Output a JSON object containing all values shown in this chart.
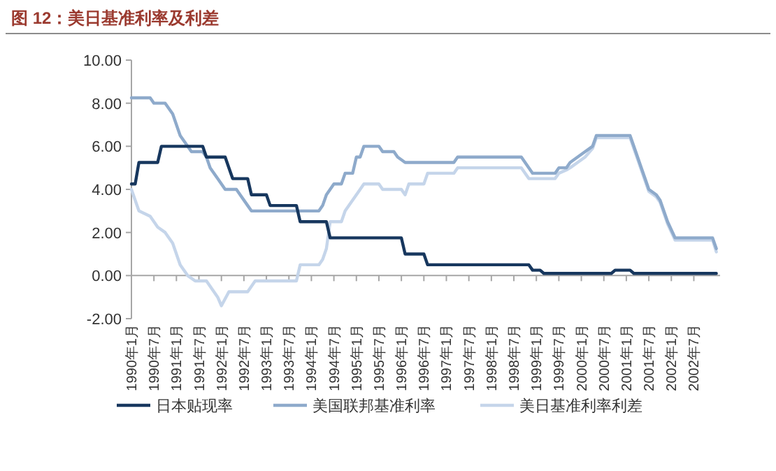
{
  "chart_data": {
    "type": "line",
    "title": "图 12：美日基准利率及利差",
    "xlim": [
      "1990-01",
      "2003-02"
    ],
    "xticks": [
      {
        "value": "1990-01",
        "label": "1990年1月"
      },
      {
        "value": "1990-07",
        "label": "1990年7月"
      },
      {
        "value": "1991-01",
        "label": "1991年1月"
      },
      {
        "value": "1991-07",
        "label": "1991年7月"
      },
      {
        "value": "1992-01",
        "label": "1992年1月"
      },
      {
        "value": "1992-07",
        "label": "1992年7月"
      },
      {
        "value": "1993-01",
        "label": "1993年1月"
      },
      {
        "value": "1993-07",
        "label": "1993年7月"
      },
      {
        "value": "1994-01",
        "label": "1994年1月"
      },
      {
        "value": "1994-07",
        "label": "1994年7月"
      },
      {
        "value": "1995-01",
        "label": "1995年1月"
      },
      {
        "value": "1995-07",
        "label": "1995年7月"
      },
      {
        "value": "1996-01",
        "label": "1996年1月"
      },
      {
        "value": "1996-07",
        "label": "1996年7月"
      },
      {
        "value": "1997-01",
        "label": "1997年1月"
      },
      {
        "value": "1997-07",
        "label": "1997年7月"
      },
      {
        "value": "1998-01",
        "label": "1998年1月"
      },
      {
        "value": "1998-07",
        "label": "1998年7月"
      },
      {
        "value": "1999-01",
        "label": "1999年1月"
      },
      {
        "value": "1999-07",
        "label": "1999年7月"
      },
      {
        "value": "2000-01",
        "label": "2000年1月"
      },
      {
        "value": "2000-07",
        "label": "2000年7月"
      },
      {
        "value": "2001-01",
        "label": "2001年1月"
      },
      {
        "value": "2001-07",
        "label": "2001年7月"
      },
      {
        "value": "2002-01",
        "label": "2002年1月"
      },
      {
        "value": "2002-07",
        "label": "2002年7月"
      }
    ],
    "ylim": [
      -2,
      10
    ],
    "yticks": [
      {
        "value": -2,
        "label": "-2.00"
      },
      {
        "value": 0,
        "label": "0.00"
      },
      {
        "value": 2,
        "label": "2.00"
      },
      {
        "value": 4,
        "label": "4.00"
      },
      {
        "value": 6,
        "label": "6.00"
      },
      {
        "value": 8,
        "label": "8.00"
      },
      {
        "value": 10,
        "label": "10.00"
      }
    ],
    "legend": "bottom",
    "line_style": "solid",
    "series": [
      {
        "name": "日本贴现率",
        "color": "#17375e",
        "x": [
          "1990-01",
          "1990-02",
          "1990-03",
          "1990-08",
          "1990-09",
          "1991-08",
          "1991-09",
          "1992-02",
          "1992-03",
          "1992-04",
          "1992-08",
          "1992-09",
          "1993-01",
          "1993-02",
          "1993-09",
          "1993-10",
          "1994-05",
          "1994-06",
          "1996-01",
          "1996-02",
          "1996-07",
          "1996-08",
          "1998-11",
          "1998-12",
          "1999-02",
          "1999-03",
          "2000-09",
          "2000-10",
          "2001-02",
          "2001-03",
          "2003-01"
        ],
        "values": [
          4.25,
          4.25,
          5.25,
          5.25,
          6.0,
          6.0,
          5.5,
          5.5,
          5.0,
          4.5,
          4.5,
          3.75,
          3.75,
          3.25,
          3.25,
          2.5,
          2.5,
          1.75,
          1.75,
          1.0,
          1.0,
          0.5,
          0.5,
          0.25,
          0.25,
          0.1,
          0.1,
          0.25,
          0.25,
          0.1,
          0.1
        ]
      },
      {
        "name": "美国联邦基准利率",
        "color": "#8eaacb",
        "x": [
          "1990-01",
          "1990-06",
          "1990-07",
          "1990-10",
          "1990-12",
          "1991-02",
          "1991-04",
          "1991-05",
          "1991-08",
          "1991-09",
          "1991-10",
          "1991-12",
          "1992-02",
          "1992-05",
          "1992-06",
          "1992-08",
          "1992-09",
          "1994-03",
          "1994-04",
          "1994-05",
          "1994-07",
          "1994-09",
          "1994-10",
          "1994-12",
          "1995-01",
          "1995-02",
          "1995-03",
          "1995-07",
          "1995-08",
          "1995-11",
          "1995-12",
          "1996-02",
          "1997-03",
          "1997-04",
          "1998-09",
          "1998-11",
          "1998-12",
          "1999-06",
          "1999-07",
          "1999-09",
          "1999-10",
          "1999-12",
          "2000-02",
          "2000-04",
          "2000-05",
          "2001-02",
          "2001-03",
          "2001-04",
          "2001-05",
          "2001-06",
          "2001-07",
          "2001-09",
          "2001-10",
          "2001-12",
          "2002-02",
          "2002-12",
          "2003-01"
        ],
        "values": [
          8.25,
          8.25,
          8.0,
          8.0,
          7.5,
          6.5,
          6.0,
          5.75,
          5.75,
          5.5,
          5.0,
          4.5,
          4.0,
          4.0,
          3.75,
          3.25,
          3.0,
          3.0,
          3.25,
          3.75,
          4.25,
          4.25,
          4.75,
          4.75,
          5.5,
          5.5,
          6.0,
          6.0,
          5.75,
          5.75,
          5.5,
          5.25,
          5.25,
          5.5,
          5.5,
          5.0,
          4.75,
          4.75,
          5.0,
          5.0,
          5.25,
          5.5,
          5.75,
          6.0,
          6.5,
          6.5,
          6.0,
          5.5,
          5.0,
          4.5,
          4.0,
          3.75,
          3.5,
          2.5,
          1.75,
          1.75,
          1.25
        ]
      },
      {
        "name": "美日基准利率利差",
        "color": "#c5d5ea",
        "x": [
          "1990-01",
          "1990-02",
          "1990-03",
          "1990-06",
          "1990-08",
          "1990-10",
          "1990-12",
          "1991-02",
          "1991-04",
          "1991-06",
          "1991-09",
          "1991-10",
          "1991-12",
          "1992-01",
          "1992-03",
          "1992-08",
          "1992-09",
          "1992-10",
          "1993-09",
          "1993-10",
          "1994-03",
          "1994-04",
          "1994-05",
          "1994-06",
          "1994-09",
          "1994-10",
          "1995-01",
          "1995-03",
          "1995-07",
          "1995-08",
          "1996-01",
          "1996-02",
          "1996-03",
          "1996-07",
          "1996-08",
          "1997-03",
          "1997-04",
          "1998-09",
          "1998-11",
          "1999-06",
          "1999-07",
          "1999-09",
          "1999-10",
          "1999-12",
          "2000-02",
          "2000-04",
          "2000-05",
          "2001-02",
          "2001-03",
          "2001-04",
          "2001-05",
          "2001-06",
          "2001-07",
          "2001-09",
          "2001-10",
          "2001-12",
          "2002-02",
          "2002-12",
          "2003-01"
        ],
        "values": [
          4.0,
          3.5,
          3.0,
          2.75,
          2.25,
          2.0,
          1.5,
          0.5,
          0.0,
          -0.25,
          -0.25,
          -0.5,
          -1.0,
          -1.4,
          -0.75,
          -0.75,
          -0.5,
          -0.25,
          -0.25,
          0.5,
          0.5,
          0.75,
          1.25,
          2.5,
          2.5,
          3.0,
          3.75,
          4.25,
          4.25,
          4.0,
          4.0,
          3.75,
          4.25,
          4.25,
          4.75,
          4.75,
          5.0,
          5.0,
          4.5,
          4.5,
          4.75,
          4.9,
          5.0,
          5.25,
          5.5,
          5.9,
          6.4,
          6.4,
          5.9,
          5.4,
          4.9,
          4.4,
          3.9,
          3.65,
          3.4,
          2.4,
          1.65,
          1.65,
          1.1
        ]
      }
    ]
  }
}
